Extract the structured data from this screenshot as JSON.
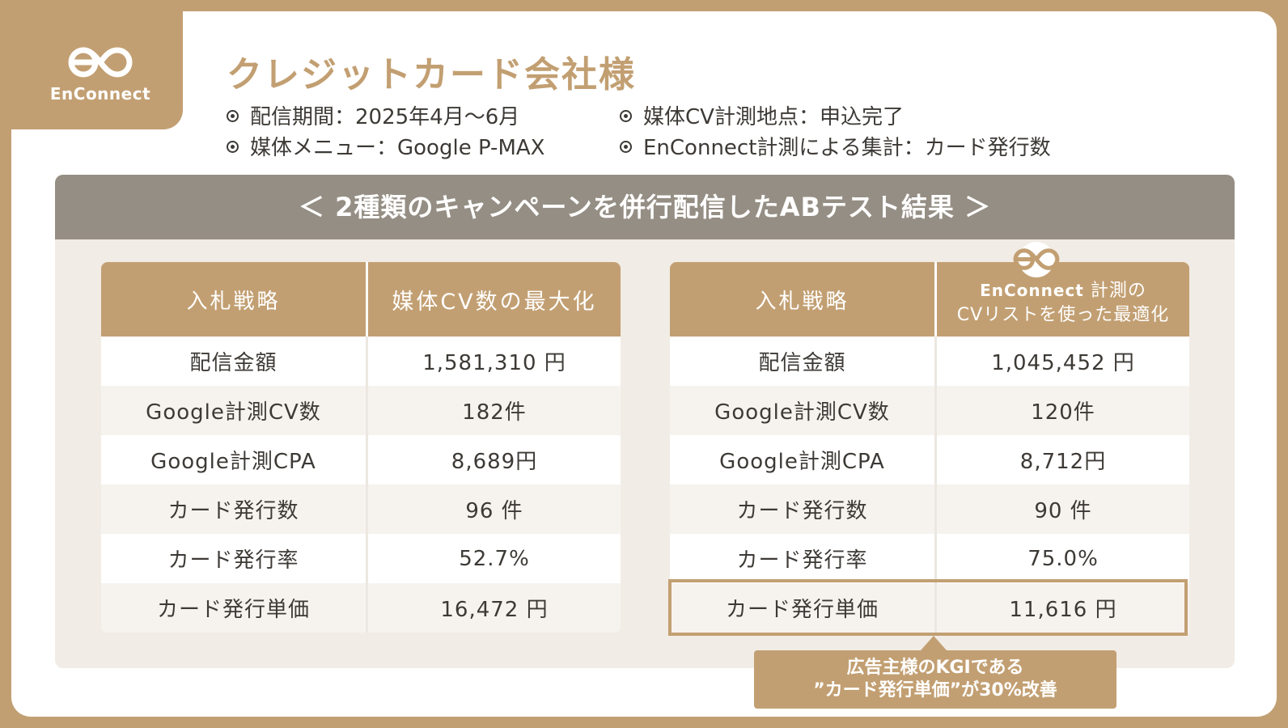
{
  "brand": {
    "logo_text": "EnConnect"
  },
  "title": "クレジットカード会社様",
  "info": [
    "配信期間：2025年4月〜6月",
    "媒体メニュー：Google P-MAX",
    "媒体CV計測地点：申込完了",
    "EnConnect計測による集計：カード発行数"
  ],
  "panel_title": "＜ 2種類のキャンペーンを併行配信したABテスト結果 ＞",
  "left_table": {
    "header": [
      "入札戦略",
      "媒体CV数の最大化"
    ],
    "rows": [
      [
        "配信金額",
        "1,581,310 円"
      ],
      [
        "Google計測CV数",
        "182件"
      ],
      [
        "Google計測CPA",
        "8,689円"
      ],
      [
        "カード発行数",
        "96 件"
      ],
      [
        "カード発行率",
        "52.7%"
      ],
      [
        "カード発行単価",
        "16,472 円"
      ]
    ]
  },
  "right_table": {
    "header": [
      "入札戦略",
      "EnConnect",
      "計測の",
      "CVリストを使った最適化"
    ],
    "rows": [
      [
        "配信金額",
        "1,045,452 円"
      ],
      [
        "Google計測CV数",
        "120件"
      ],
      [
        "Google計測CPA",
        "8,712円"
      ],
      [
        "カード発行数",
        "90 件"
      ],
      [
        "カード発行率",
        "75.0%"
      ],
      [
        "カード発行単価",
        "11,616 円"
      ]
    ]
  },
  "callout": {
    "line1": "広告主様のKGIである",
    "line2": "”カード発行単価”が30%改善"
  },
  "colors": {
    "brand": "#c29f72",
    "panel_header": "#958e84",
    "panel_bg": "#f1ece5"
  }
}
